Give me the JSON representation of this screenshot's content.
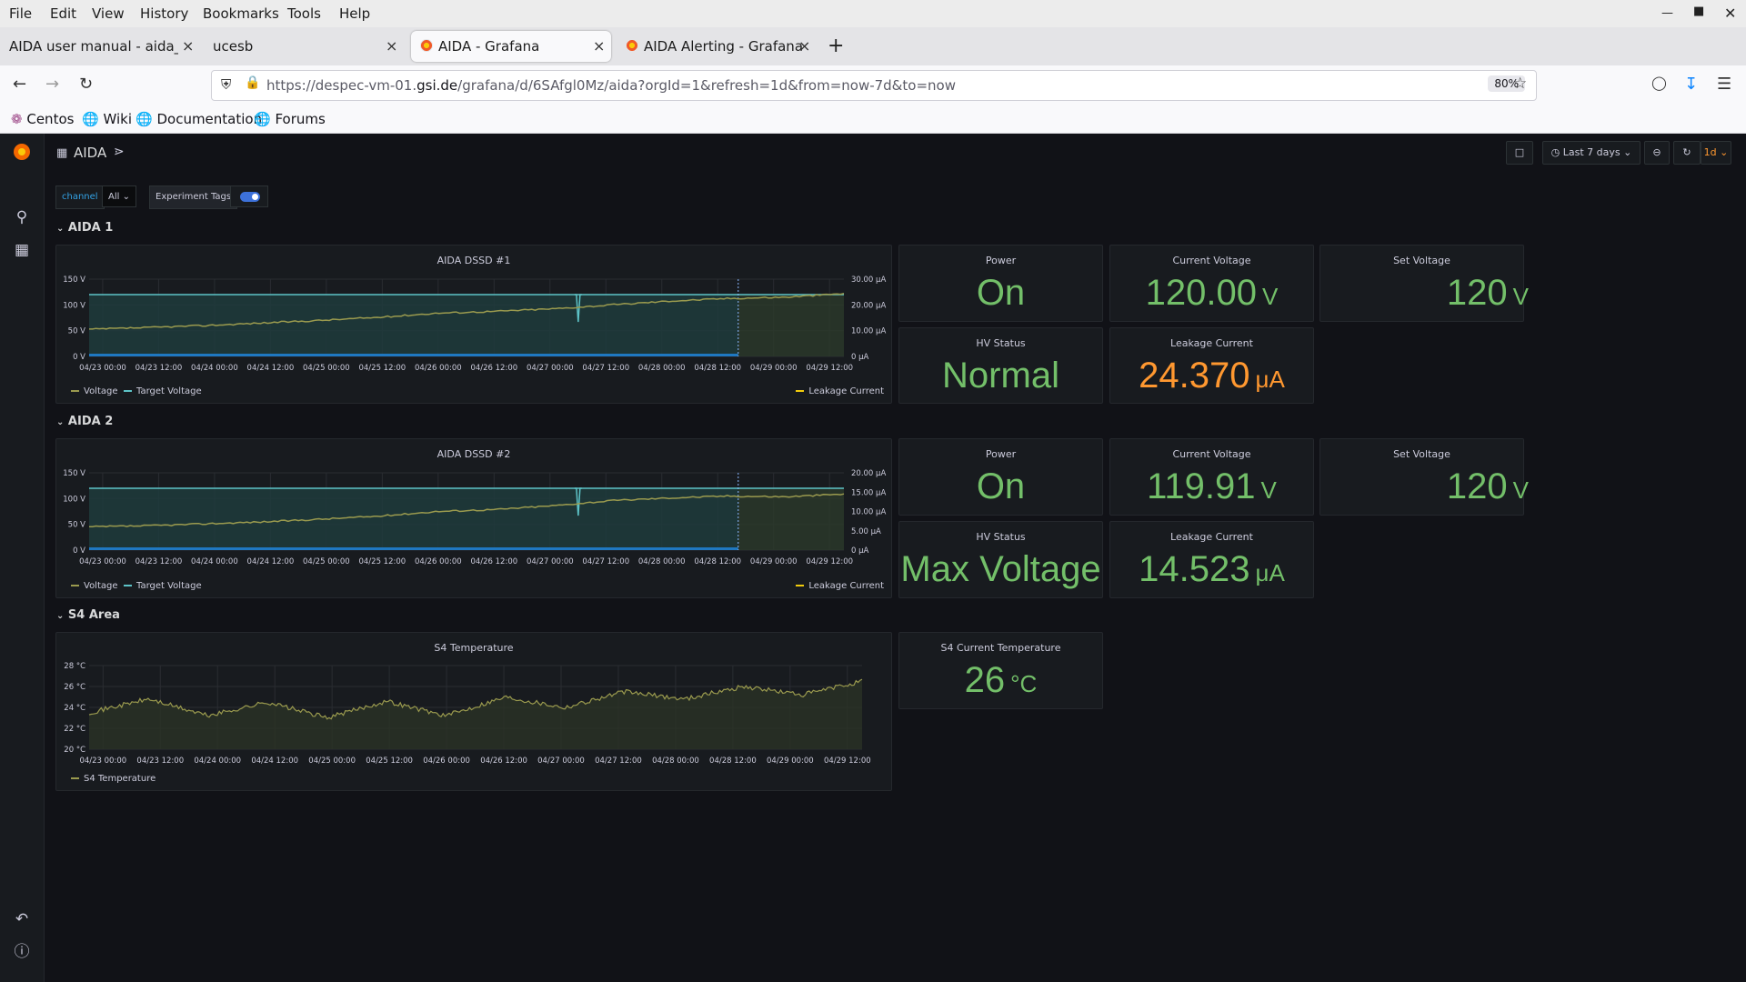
{
  "menu": [
    "File",
    "Edit",
    "View",
    "History",
    "Bookmarks",
    "Tools",
    "Help"
  ],
  "tabs": [
    {
      "label": "AIDA user manual - aida_man"
    },
    {
      "label": "ucesb"
    },
    {
      "label": "AIDA - Grafana"
    },
    {
      "label": "AIDA Alerting - Grafana"
    }
  ],
  "address": {
    "prefix": "https://despec-vm-01.",
    "host": "gsi.de",
    "path": "/grafana/d/6SAfgl0Mz/aida?orgId=1&refresh=1d&from=now-7d&to=now",
    "zoom": "80%"
  },
  "bookmarks": [
    "Centos",
    "Wiki",
    "Documentation",
    "Forums"
  ],
  "dashboard": {
    "title": "AIDA",
    "time_range": "Last 7 days",
    "refresh": "1d",
    "variables": {
      "channel_label": "channel",
      "channel_value": "All",
      "tags_label": "Experiment Tags",
      "tags_enabled": true
    }
  },
  "colors": {
    "green": "#73bf69",
    "orange": "#ff9830",
    "line": "#9a9a4e",
    "target": "#5dc3c7",
    "bar": "#1f78c1"
  },
  "rows": [
    {
      "title": "AIDA 1"
    },
    {
      "title": "AIDA 2"
    },
    {
      "title": "S4 Area"
    }
  ],
  "aida1": {
    "graph_title": "AIDA DSSD #1",
    "left_ticks": [
      "150 V",
      "100 V",
      "50 V",
      "0 V"
    ],
    "right_ticks": [
      "30.00 μA",
      "20.00 μA",
      "10.00 μA",
      "0 μA"
    ],
    "legend_left": [
      "Voltage",
      "Target Voltage"
    ],
    "legend_right": "Leakage Current",
    "power": {
      "title": "Power",
      "value": "On"
    },
    "current_voltage": {
      "title": "Current Voltage",
      "value": "120.00",
      "unit": "V"
    },
    "set_voltage": {
      "title": "Set Voltage",
      "value": "120",
      "unit": "V"
    },
    "hv_status": {
      "title": "HV Status",
      "value": "Normal"
    },
    "leakage": {
      "title": "Leakage Current",
      "value": "24.370",
      "unit": "μA"
    }
  },
  "aida2": {
    "graph_title": "AIDA DSSD #2",
    "left_ticks": [
      "150 V",
      "100 V",
      "50 V",
      "0 V"
    ],
    "right_ticks": [
      "20.00 μA",
      "15.00 μA",
      "10.00 μA",
      "5.00 μA",
      "0 μA"
    ],
    "legend_left": [
      "Voltage",
      "Target Voltage"
    ],
    "legend_right": "Leakage Current",
    "power": {
      "title": "Power",
      "value": "On"
    },
    "current_voltage": {
      "title": "Current Voltage",
      "value": "119.91",
      "unit": "V"
    },
    "set_voltage": {
      "title": "Set Voltage",
      "value": "120",
      "unit": "V"
    },
    "hv_status": {
      "title": "HV Status",
      "value": "Max Voltage"
    },
    "leakage": {
      "title": "Leakage Current",
      "value": "14.523",
      "unit": "μA"
    }
  },
  "s4": {
    "graph_title": "S4 Temperature",
    "left_ticks": [
      "28 °C",
      "26 °C",
      "24 °C",
      "22 °C",
      "20 °C"
    ],
    "legend": "S4 Temperature",
    "current": {
      "title": "S4 Current Temperature",
      "value": "26",
      "unit": "°C"
    }
  },
  "x_ticks": [
    "04/23 00:00",
    "04/23 12:00",
    "04/24 00:00",
    "04/24 12:00",
    "04/25 00:00",
    "04/25 12:00",
    "04/26 00:00",
    "04/26 12:00",
    "04/27 00:00",
    "04/27 12:00",
    "04/28 00:00",
    "04/28 12:00",
    "04/29 00:00",
    "04/29 12:00"
  ],
  "chart_data": [
    {
      "type": "line",
      "title": "AIDA DSSD #1",
      "x": [
        "04/23 00:00",
        "04/23 12:00",
        "04/24 00:00",
        "04/24 12:00",
        "04/25 00:00",
        "04/25 12:00",
        "04/26 00:00",
        "04/26 12:00",
        "04/27 00:00",
        "04/27 12:00",
        "04/28 00:00",
        "04/28 12:00",
        "04/29 00:00",
        "04/29 12:00"
      ],
      "series": [
        {
          "name": "Voltage",
          "values": [
            120,
            120,
            120,
            120,
            120,
            120,
            120,
            120,
            120,
            120,
            120,
            120,
            120,
            120
          ]
        },
        {
          "name": "Target Voltage",
          "values": [
            120,
            120,
            120,
            120,
            120,
            120,
            120,
            120,
            120,
            120,
            120,
            120,
            120,
            120
          ]
        },
        {
          "name": "Leakage Current",
          "values": [
            10.5,
            11.2,
            12.0,
            13.0,
            14.0,
            15.2,
            16.8,
            17.5,
            18.5,
            20.0,
            21.5,
            22.5,
            23.0,
            24.4
          ]
        }
      ],
      "ylim": [
        0,
        150
      ],
      "ylim_right": [
        0,
        30
      ]
    },
    {
      "type": "line",
      "title": "AIDA DSSD #2",
      "x": [
        "04/23 00:00",
        "04/23 12:00",
        "04/24 00:00",
        "04/24 12:00",
        "04/25 00:00",
        "04/25 12:00",
        "04/26 00:00",
        "04/26 12:00",
        "04/27 00:00",
        "04/27 12:00",
        "04/28 00:00",
        "04/28 12:00",
        "04/29 00:00",
        "04/29 12:00"
      ],
      "series": [
        {
          "name": "Voltage",
          "values": [
            120,
            120,
            120,
            120,
            120,
            120,
            120,
            120,
            120,
            120,
            120,
            120,
            120,
            119.9
          ]
        },
        {
          "name": "Target Voltage",
          "values": [
            120,
            120,
            120,
            120,
            120,
            120,
            120,
            120,
            120,
            120,
            120,
            120,
            120,
            120
          ]
        },
        {
          "name": "Leakage Current",
          "values": [
            6.0,
            6.3,
            6.8,
            7.3,
            8.0,
            8.8,
            10.0,
            10.5,
            11.5,
            12.8,
            13.5,
            14.0,
            13.8,
            14.5
          ]
        }
      ],
      "ylim": [
        0,
        150
      ],
      "ylim_right": [
        0,
        20
      ]
    },
    {
      "type": "line",
      "title": "S4 Temperature",
      "x": [
        "04/23 00:00",
        "04/23 12:00",
        "04/24 00:00",
        "04/24 12:00",
        "04/25 00:00",
        "04/25 12:00",
        "04/26 00:00",
        "04/26 12:00",
        "04/27 00:00",
        "04/27 12:00",
        "04/28 00:00",
        "04/28 12:00",
        "04/29 00:00",
        "04/29 12:00"
      ],
      "series": [
        {
          "name": "S4 Temperature",
          "values": [
            23.5,
            24.8,
            23.2,
            24.5,
            23.0,
            24.6,
            23.2,
            25.0,
            24.0,
            25.5,
            24.8,
            26.0,
            25.2,
            26.5
          ]
        }
      ],
      "ylim": [
        20,
        28
      ]
    }
  ]
}
